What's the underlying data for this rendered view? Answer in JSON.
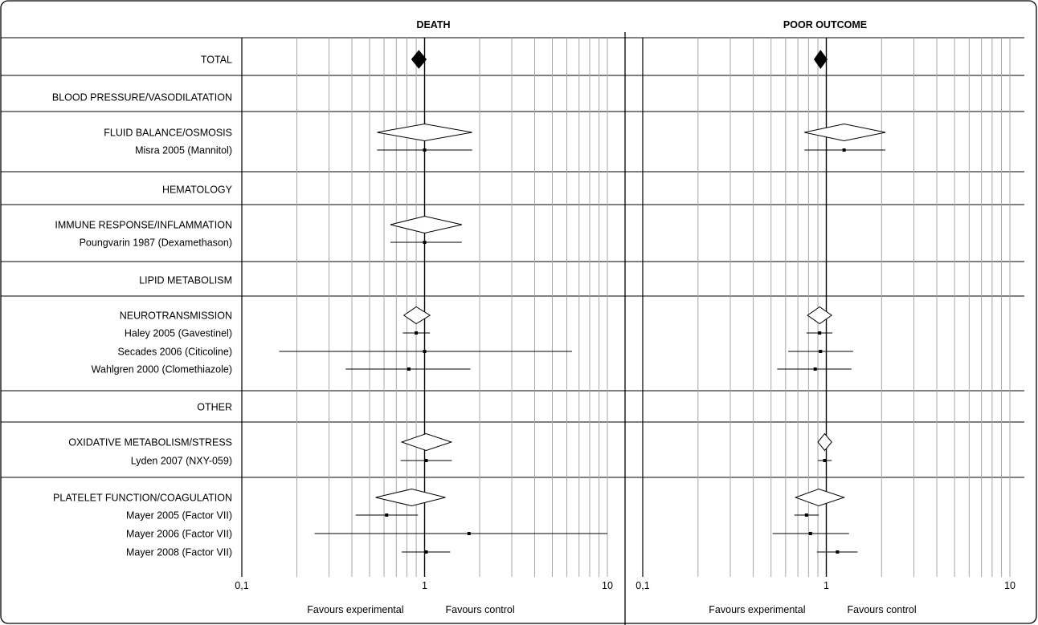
{
  "chart_data": {
    "type": "forest",
    "scale": "log",
    "xlim": [
      0.1,
      10
    ],
    "x_ticks": [
      {
        "value": 0.1,
        "label": "0,1"
      },
      {
        "value": 1,
        "label": "1"
      },
      {
        "value": 10,
        "label": "10"
      }
    ],
    "x_footer": {
      "left": "Favours experimental",
      "right": "Favours control"
    },
    "grid": true,
    "reference_line": 1,
    "rows": [
      {
        "label": "TOTAL",
        "kind": "total"
      },
      {
        "label": "BLOOD PRESSURE/VASODILATATION",
        "kind": "group"
      },
      {
        "label": "FLUID BALANCE/OSMOSIS",
        "kind": "group"
      },
      {
        "label": "Misra 2005 (Mannitol)",
        "kind": "study"
      },
      {
        "label": "HEMATOLOGY",
        "kind": "group"
      },
      {
        "label": "IMMUNE RESPONSE/INFLAMMATION",
        "kind": "group"
      },
      {
        "label": "Poungvarin 1987 (Dexamethason)",
        "kind": "study"
      },
      {
        "label": "LIPID METABOLISM",
        "kind": "group"
      },
      {
        "label": "NEUROTRANSMISSION",
        "kind": "group"
      },
      {
        "label": "Haley 2005 (Gavestinel)",
        "kind": "study"
      },
      {
        "label": "Secades 2006 (Citicoline)",
        "kind": "study"
      },
      {
        "label": "Wahlgren 2000 (Clomethiazole)",
        "kind": "study"
      },
      {
        "label": "OTHER",
        "kind": "group"
      },
      {
        "label": "OXIDATIVE METABOLISM/STRESS",
        "kind": "group"
      },
      {
        "label": "Lyden 2007 (NXY-059)",
        "kind": "study"
      },
      {
        "label": "PLATELET FUNCTION/COAGULATION",
        "kind": "group"
      },
      {
        "label": "Mayer 2005 (Factor VII)",
        "kind": "study"
      },
      {
        "label": "Mayer 2006 (Factor VII)",
        "kind": "study"
      },
      {
        "label": "Mayer 2008 (Factor VII)",
        "kind": "study"
      }
    ],
    "panels": [
      {
        "title": "DEATH",
        "estimates": [
          {
            "row": 0,
            "type": "diamond_filled",
            "est": 0.93,
            "lo": 0.85,
            "hi": 1.02
          },
          {
            "row": 2,
            "type": "diamond",
            "est": 1.0,
            "lo": 0.55,
            "hi": 1.82
          },
          {
            "row": 3,
            "type": "square",
            "est": 1.0,
            "lo": 0.55,
            "hi": 1.82
          },
          {
            "row": 5,
            "type": "diamond",
            "est": 1.0,
            "lo": 0.65,
            "hi": 1.6
          },
          {
            "row": 6,
            "type": "square",
            "est": 1.0,
            "lo": 0.65,
            "hi": 1.6
          },
          {
            "row": 8,
            "type": "diamond",
            "est": 0.9,
            "lo": 0.77,
            "hi": 1.07
          },
          {
            "row": 9,
            "type": "square",
            "est": 0.9,
            "lo": 0.76,
            "hi": 1.07
          },
          {
            "row": 10,
            "type": "square",
            "est": 1.0,
            "lo": 0.16,
            "hi": 6.4
          },
          {
            "row": 11,
            "type": "square",
            "est": 0.82,
            "lo": 0.37,
            "hi": 1.78
          },
          {
            "row": 13,
            "type": "diamond",
            "est": 1.02,
            "lo": 0.75,
            "hi": 1.4
          },
          {
            "row": 14,
            "type": "square",
            "est": 1.02,
            "lo": 0.74,
            "hi": 1.41
          },
          {
            "row": 15,
            "type": "diamond",
            "est": 0.85,
            "lo": 0.54,
            "hi": 1.3
          },
          {
            "row": 16,
            "type": "square",
            "est": 0.62,
            "lo": 0.42,
            "hi": 0.92
          },
          {
            "row": 17,
            "type": "square",
            "est": 1.75,
            "lo": 0.25,
            "hi": 10
          },
          {
            "row": 18,
            "type": "square",
            "est": 1.02,
            "lo": 0.75,
            "hi": 1.38
          }
        ]
      },
      {
        "title": "POOR OUTCOME",
        "estimates": [
          {
            "row": 0,
            "type": "diamond_filled",
            "est": 0.93,
            "lo": 0.86,
            "hi": 1.01
          },
          {
            "row": 2,
            "type": "diamond",
            "est": 1.25,
            "lo": 0.76,
            "hi": 2.1
          },
          {
            "row": 3,
            "type": "square",
            "est": 1.25,
            "lo": 0.76,
            "hi": 2.1
          },
          {
            "row": 8,
            "type": "diamond",
            "est": 0.92,
            "lo": 0.79,
            "hi": 1.07
          },
          {
            "row": 9,
            "type": "square",
            "est": 0.92,
            "lo": 0.78,
            "hi": 1.08
          },
          {
            "row": 10,
            "type": "square",
            "est": 0.93,
            "lo": 0.62,
            "hi": 1.4
          },
          {
            "row": 11,
            "type": "square",
            "est": 0.87,
            "lo": 0.54,
            "hi": 1.37
          },
          {
            "row": 13,
            "type": "diamond",
            "est": 0.98,
            "lo": 0.9,
            "hi": 1.07
          },
          {
            "row": 14,
            "type": "square",
            "est": 0.98,
            "lo": 0.9,
            "hi": 1.07
          },
          {
            "row": 15,
            "type": "diamond",
            "est": 0.91,
            "lo": 0.68,
            "hi": 1.25
          },
          {
            "row": 16,
            "type": "square",
            "est": 0.78,
            "lo": 0.67,
            "hi": 0.91
          },
          {
            "row": 17,
            "type": "square",
            "est": 0.82,
            "lo": 0.51,
            "hi": 1.33
          },
          {
            "row": 18,
            "type": "square",
            "est": 1.15,
            "lo": 0.89,
            "hi": 1.48
          }
        ]
      }
    ]
  }
}
